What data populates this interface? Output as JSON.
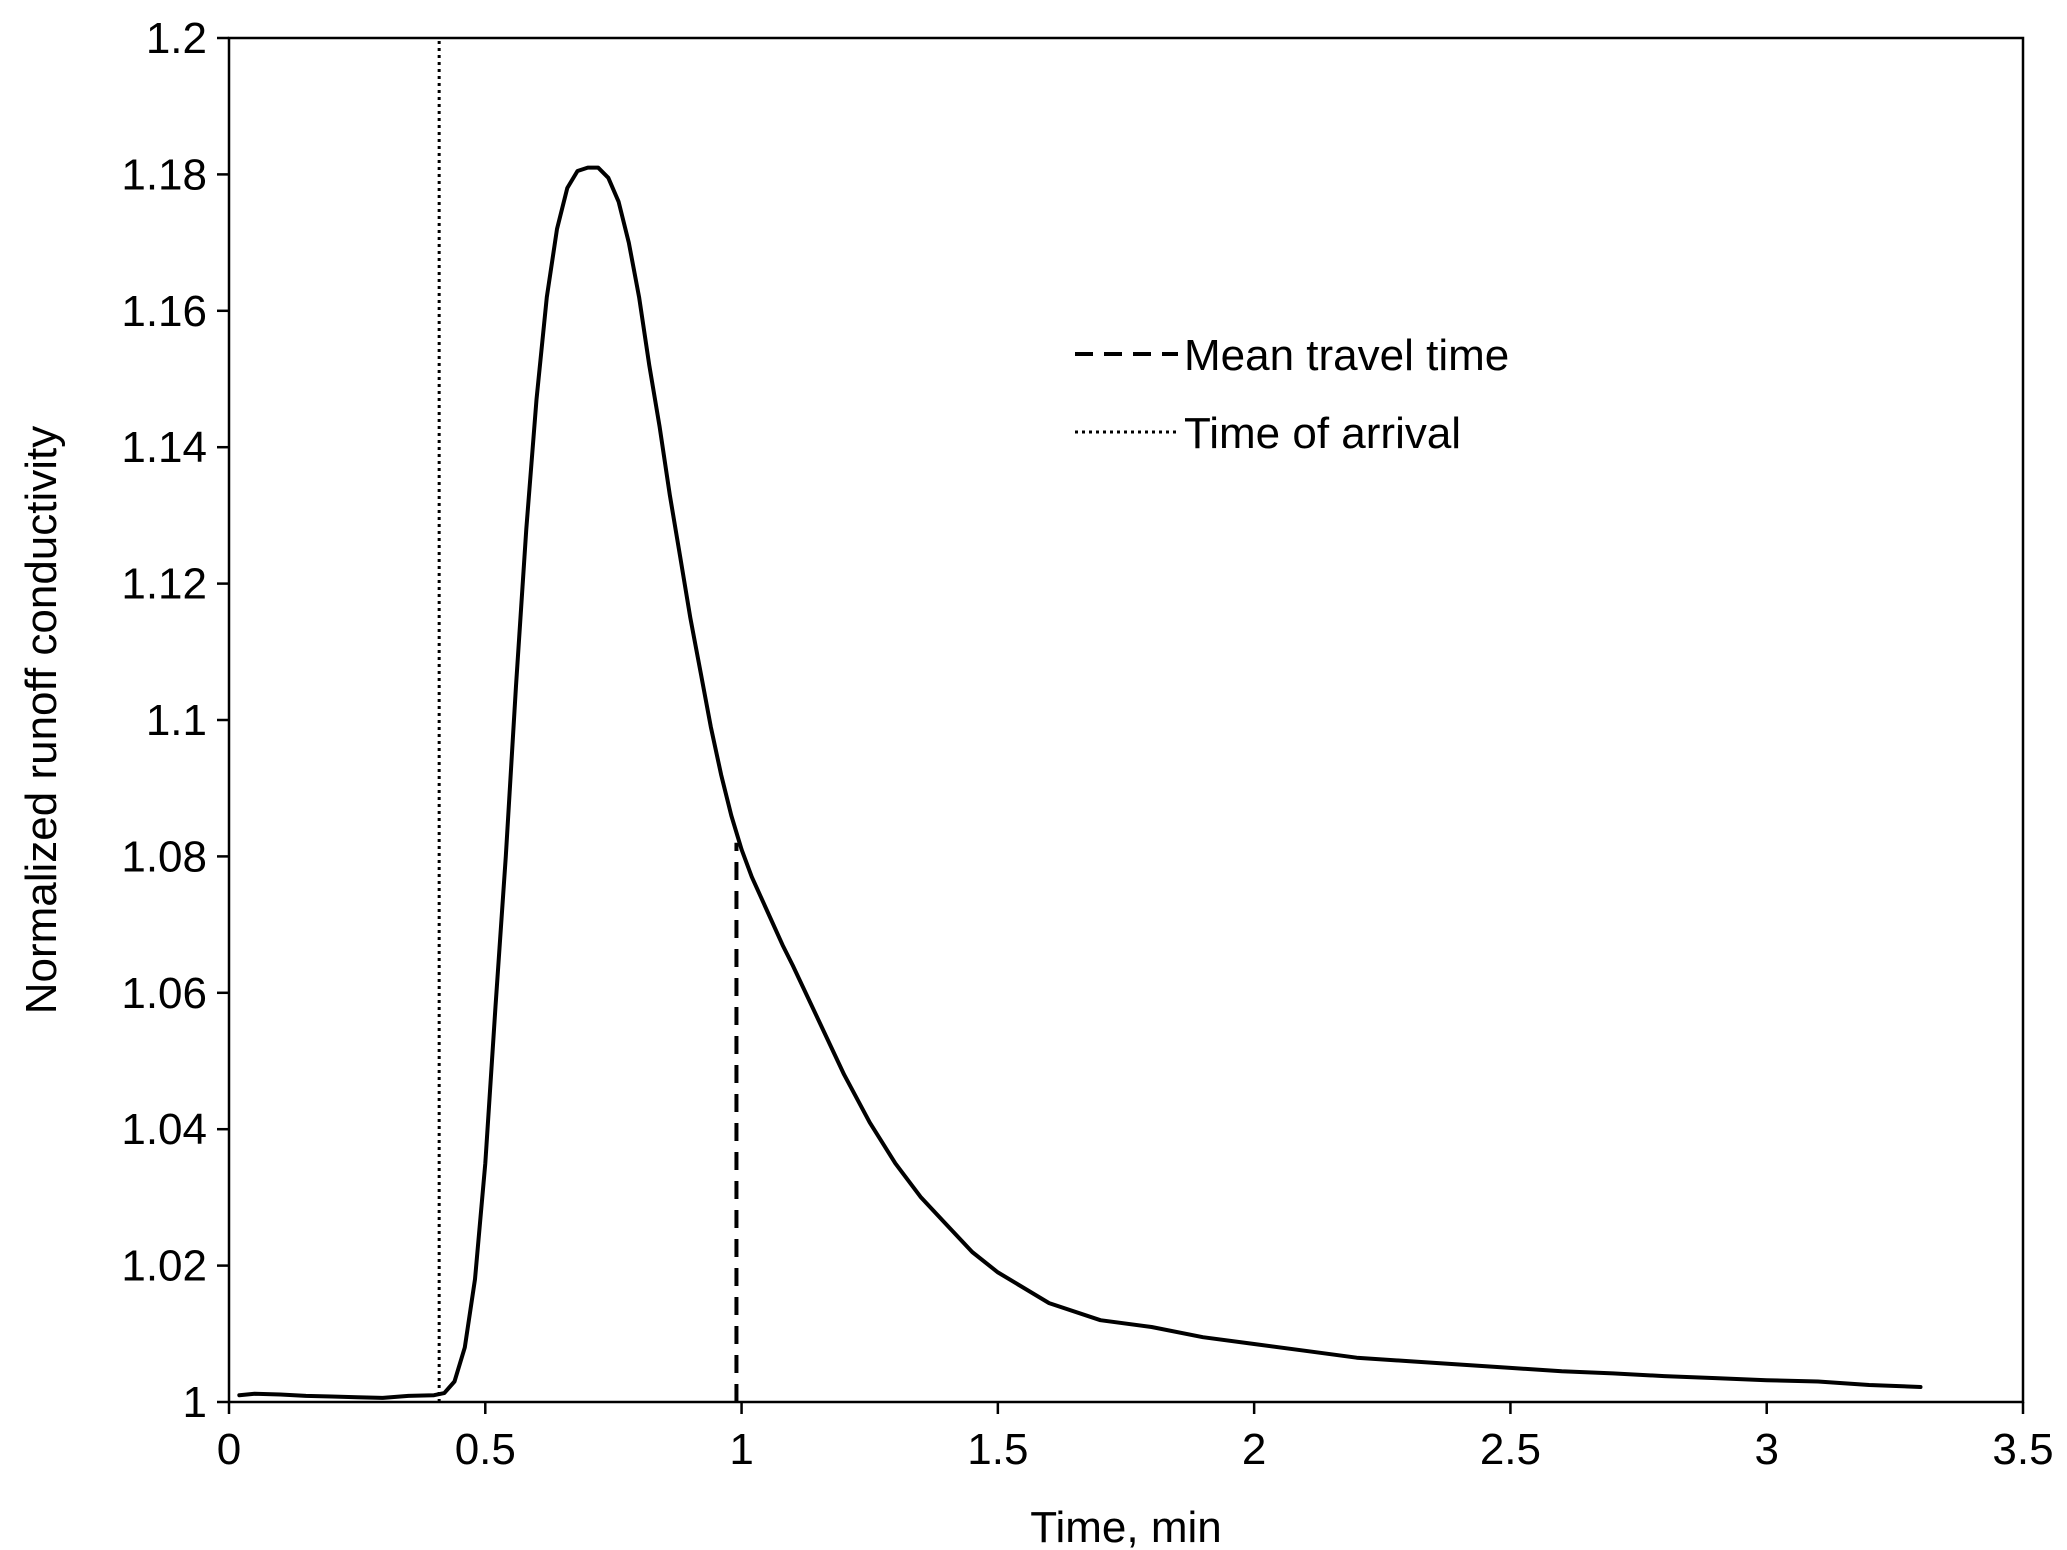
{
  "chart_data": {
    "type": "line",
    "title": "",
    "xlabel": "Time, min",
    "ylabel": "Normalized runoff conductivity",
    "xlim": [
      0,
      3.5
    ],
    "ylim": [
      1,
      1.2
    ],
    "x_ticks": [
      "0",
      "0.5",
      "1",
      "1.5",
      "2",
      "2.5",
      "3",
      "3.5"
    ],
    "y_ticks": [
      "1",
      "1.02",
      "1.04",
      "1.06",
      "1.08",
      "1.1",
      "1.12",
      "1.14",
      "1.16",
      "1.18",
      "1.2"
    ],
    "grid": false,
    "legend_position": "top-right (inside plot)",
    "legend": [
      {
        "label": "Mean travel time",
        "style": "dashed"
      },
      {
        "label": "Time of arrival",
        "style": "dotted"
      }
    ],
    "series": [
      {
        "style": "solid",
        "color": "#000000",
        "x": [
          0.02,
          0.05,
          0.1,
          0.15,
          0.2,
          0.25,
          0.3,
          0.35,
          0.4,
          0.42,
          0.44,
          0.46,
          0.48,
          0.5,
          0.52,
          0.54,
          0.56,
          0.58,
          0.6,
          0.62,
          0.64,
          0.66,
          0.68,
          0.7,
          0.72,
          0.74,
          0.76,
          0.78,
          0.8,
          0.82,
          0.84,
          0.86,
          0.88,
          0.9,
          0.92,
          0.94,
          0.96,
          0.98,
          1.0,
          1.02,
          1.05,
          1.08,
          1.1,
          1.15,
          1.2,
          1.25,
          1.3,
          1.35,
          1.4,
          1.45,
          1.5,
          1.6,
          1.7,
          1.8,
          1.9,
          2.0,
          2.1,
          2.2,
          2.3,
          2.4,
          2.5,
          2.6,
          2.7,
          2.8,
          2.9,
          3.0,
          3.1,
          3.2,
          3.3
        ],
        "y": [
          1.001,
          1.0012,
          1.0011,
          1.0009,
          1.0008,
          1.0007,
          1.0006,
          1.0009,
          1.001,
          1.0013,
          1.003,
          1.008,
          1.018,
          1.035,
          1.058,
          1.08,
          1.105,
          1.128,
          1.147,
          1.162,
          1.172,
          1.178,
          1.1805,
          1.181,
          1.181,
          1.1795,
          1.176,
          1.17,
          1.162,
          1.152,
          1.143,
          1.133,
          1.124,
          1.115,
          1.107,
          1.099,
          1.092,
          1.086,
          1.081,
          1.077,
          1.072,
          1.067,
          1.064,
          1.056,
          1.048,
          1.041,
          1.035,
          1.03,
          1.026,
          1.022,
          1.019,
          1.0145,
          1.012,
          1.011,
          1.0095,
          1.0085,
          1.0075,
          1.0065,
          1.006,
          1.0055,
          1.005,
          1.0045,
          1.0042,
          1.0038,
          1.0035,
          1.0032,
          1.003,
          1.0025,
          1.0022
        ]
      }
    ],
    "markers": [
      {
        "name": "Mean travel time",
        "x": 0.99,
        "y_from": 1.0,
        "y_to": 1.082,
        "style": "dashed"
      },
      {
        "name": "Time of arrival",
        "x": 0.41,
        "y_from": 1.0,
        "y_to": 1.2,
        "style": "dotted"
      }
    ]
  }
}
